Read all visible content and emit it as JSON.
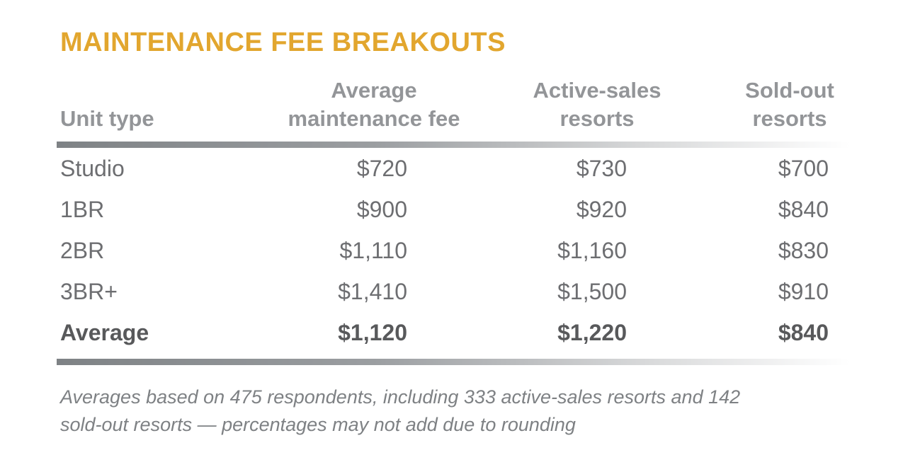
{
  "colors": {
    "title_gold": "#e2a62e",
    "header_gray": "#939598",
    "value_gray": "#6d6e71",
    "emphasis_dark_gray": "#58595b",
    "footnote_gray": "#7e8184",
    "rule_gradient_start": "#7e8285",
    "rule_gradient_end": "#ffffff",
    "background": "#ffffff"
  },
  "chart_data": {
    "type": "table",
    "title": "MAINTENANCE FEE BREAKOUTS",
    "columns": [
      "Unit type",
      "Average maintenance fee",
      "Active-sales resorts",
      "Sold-out resorts"
    ],
    "header_lines": [
      {
        "line1": "Unit type",
        "line2": ""
      },
      {
        "line1": "Average",
        "line2": "maintenance fee"
      },
      {
        "line1": "Active-sales",
        "line2": "resorts"
      },
      {
        "line1": "Sold-out",
        "line2": "resorts"
      }
    ],
    "rows": [
      [
        "Studio",
        "$720",
        "$730",
        "$700"
      ],
      [
        "1BR",
        "$900",
        "$920",
        "$840"
      ],
      [
        "2BR",
        "$1,110",
        "$1,160",
        "$830"
      ],
      [
        "3BR+",
        "$1,410",
        "$1,500",
        "$910"
      ],
      [
        "Average",
        "$1,120",
        "$1,220",
        "$840"
      ]
    ],
    "values_numeric": {
      "average_maintenance_fee": [
        720,
        900,
        1110,
        1410,
        1120
      ],
      "active_sales_resorts": [
        730,
        920,
        1160,
        1500,
        1220
      ],
      "sold_out_resorts": [
        700,
        840,
        830,
        910,
        840
      ]
    },
    "footnote": "Averages based on 475 respondents, including 333 active-sales resorts and 142 sold-out resorts — percentages may not add due to rounding",
    "footnote_lines": [
      "Averages based on 475 respondents, including 333 active-sales resorts and 142",
      "sold-out resorts — percentages may not add due to rounding"
    ]
  }
}
